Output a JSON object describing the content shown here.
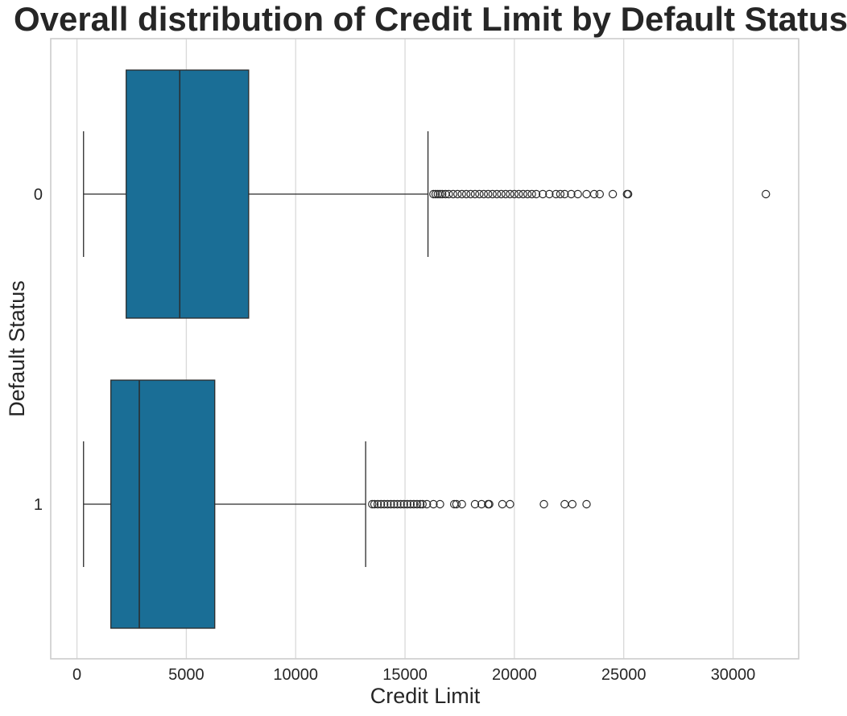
{
  "chart_data": {
    "type": "box",
    "orientation": "horizontal",
    "title": "Overall distribution of Credit Limit by Default Status",
    "xlabel": "Credit Limit",
    "ylabel": "Default Status",
    "xlim": [
      -1200,
      33000
    ],
    "xticks": [
      0,
      5000,
      10000,
      15000,
      20000,
      25000,
      30000
    ],
    "grid": "vertical",
    "box_color": "#1a6e96",
    "categories": [
      "0",
      "1"
    ],
    "series": [
      {
        "category": "0",
        "whisker_low": 300,
        "q1": 2250,
        "median": 4700,
        "q3": 7850,
        "whisker_high": 16050,
        "outliers": [
          16300,
          16400,
          16500,
          16600,
          16700,
          16850,
          17000,
          17200,
          17400,
          17600,
          17800,
          18000,
          18200,
          18400,
          18600,
          18800,
          19000,
          19200,
          19400,
          19600,
          19800,
          20000,
          20200,
          20400,
          20600,
          20800,
          21000,
          21300,
          21600,
          21900,
          22100,
          22300,
          22600,
          22900,
          23300,
          23650,
          23900,
          24500,
          25150,
          25200,
          31500
        ]
      },
      {
        "category": "1",
        "whisker_low": 300,
        "q1": 1550,
        "median": 2850,
        "q3": 6300,
        "whisker_high": 13200,
        "outliers": [
          13500,
          13600,
          13750,
          13900,
          14050,
          14200,
          14350,
          14500,
          14650,
          14800,
          14950,
          15100,
          15250,
          15400,
          15550,
          15700,
          15800,
          16000,
          16300,
          16600,
          17250,
          17350,
          17600,
          18200,
          18500,
          18800,
          18850,
          19450,
          19800,
          21350,
          22300,
          22650,
          23300
        ]
      }
    ]
  }
}
